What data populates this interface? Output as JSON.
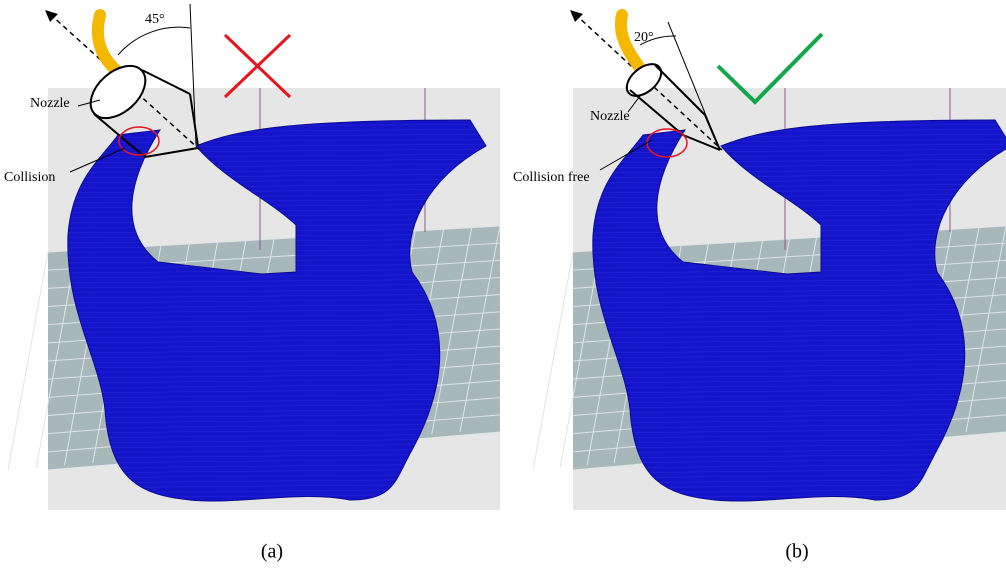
{
  "panels": [
    {
      "angle": "45°",
      "nozzle": "Nozzle",
      "collision": "Collision",
      "caption": "(a)"
    },
    {
      "angle": "20°",
      "nozzle": "Nozzle",
      "collision": "Collision free",
      "caption": "(b)"
    }
  ]
}
